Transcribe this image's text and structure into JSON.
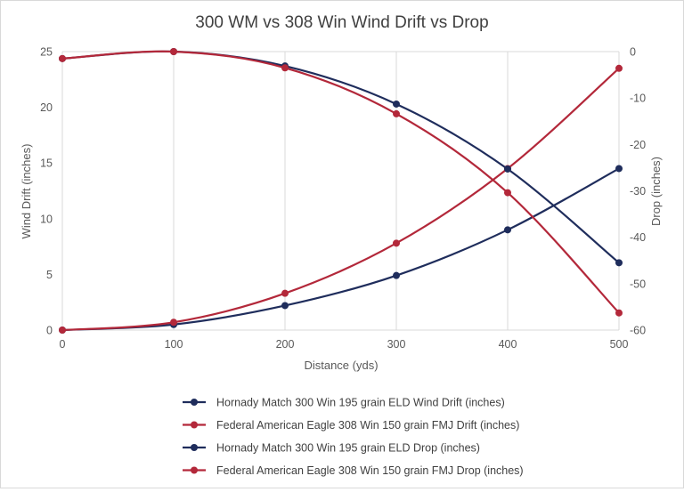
{
  "chart_data": {
    "type": "line",
    "title": "300 WM vs 308 Win Wind Drift vs Drop",
    "xlabel": "Distance (yds)",
    "ylabel_left": "Wind Drift (inches)",
    "ylabel_right": "Drop (inches)",
    "x": [
      0,
      100,
      200,
      300,
      400,
      500
    ],
    "x_ticks": [
      "0",
      "100",
      "200",
      "300",
      "400",
      "500"
    ],
    "xlim": [
      0,
      500
    ],
    "ylim_left": [
      0,
      25
    ],
    "yticks_left": [
      "0",
      "5",
      "10",
      "15",
      "20",
      "25"
    ],
    "ylim_right": [
      -60,
      0
    ],
    "yticks_right": [
      "0",
      "-10",
      "-20",
      "-30",
      "-40",
      "-50",
      "-60"
    ],
    "grid": "vertical",
    "legend_position": "bottom",
    "colors": {
      "hornady": "#1f2d5c",
      "federal": "#b3283a",
      "grid": "#d9d9d9"
    },
    "series": [
      {
        "name": "Hornady Match 300 Win 195 grain ELD Wind Drift (inches)",
        "axis": "left",
        "color": "#1f2d5c",
        "values": [
          0,
          0.5,
          2.2,
          4.9,
          9.0,
          14.5
        ]
      },
      {
        "name": "Federal American Eagle 308 Win 150 grain FMJ Drift (inches)",
        "axis": "left",
        "color": "#b3283a",
        "values": [
          0,
          0.7,
          3.3,
          7.8,
          14.5,
          23.5
        ]
      },
      {
        "name": "Hornady Match 300 Win 195 grain ELD Drop (inches)",
        "axis": "right",
        "color": "#1f2d5c",
        "values": [
          -1.5,
          0,
          -3.1,
          -11.3,
          -25.3,
          -45.5
        ]
      },
      {
        "name": "Federal American Eagle 308 Win 150 grain FMJ Drop (inches)",
        "axis": "right",
        "color": "#b3283a",
        "values": [
          -1.5,
          0,
          -3.5,
          -13.4,
          -30.4,
          -56.3
        ]
      }
    ]
  }
}
